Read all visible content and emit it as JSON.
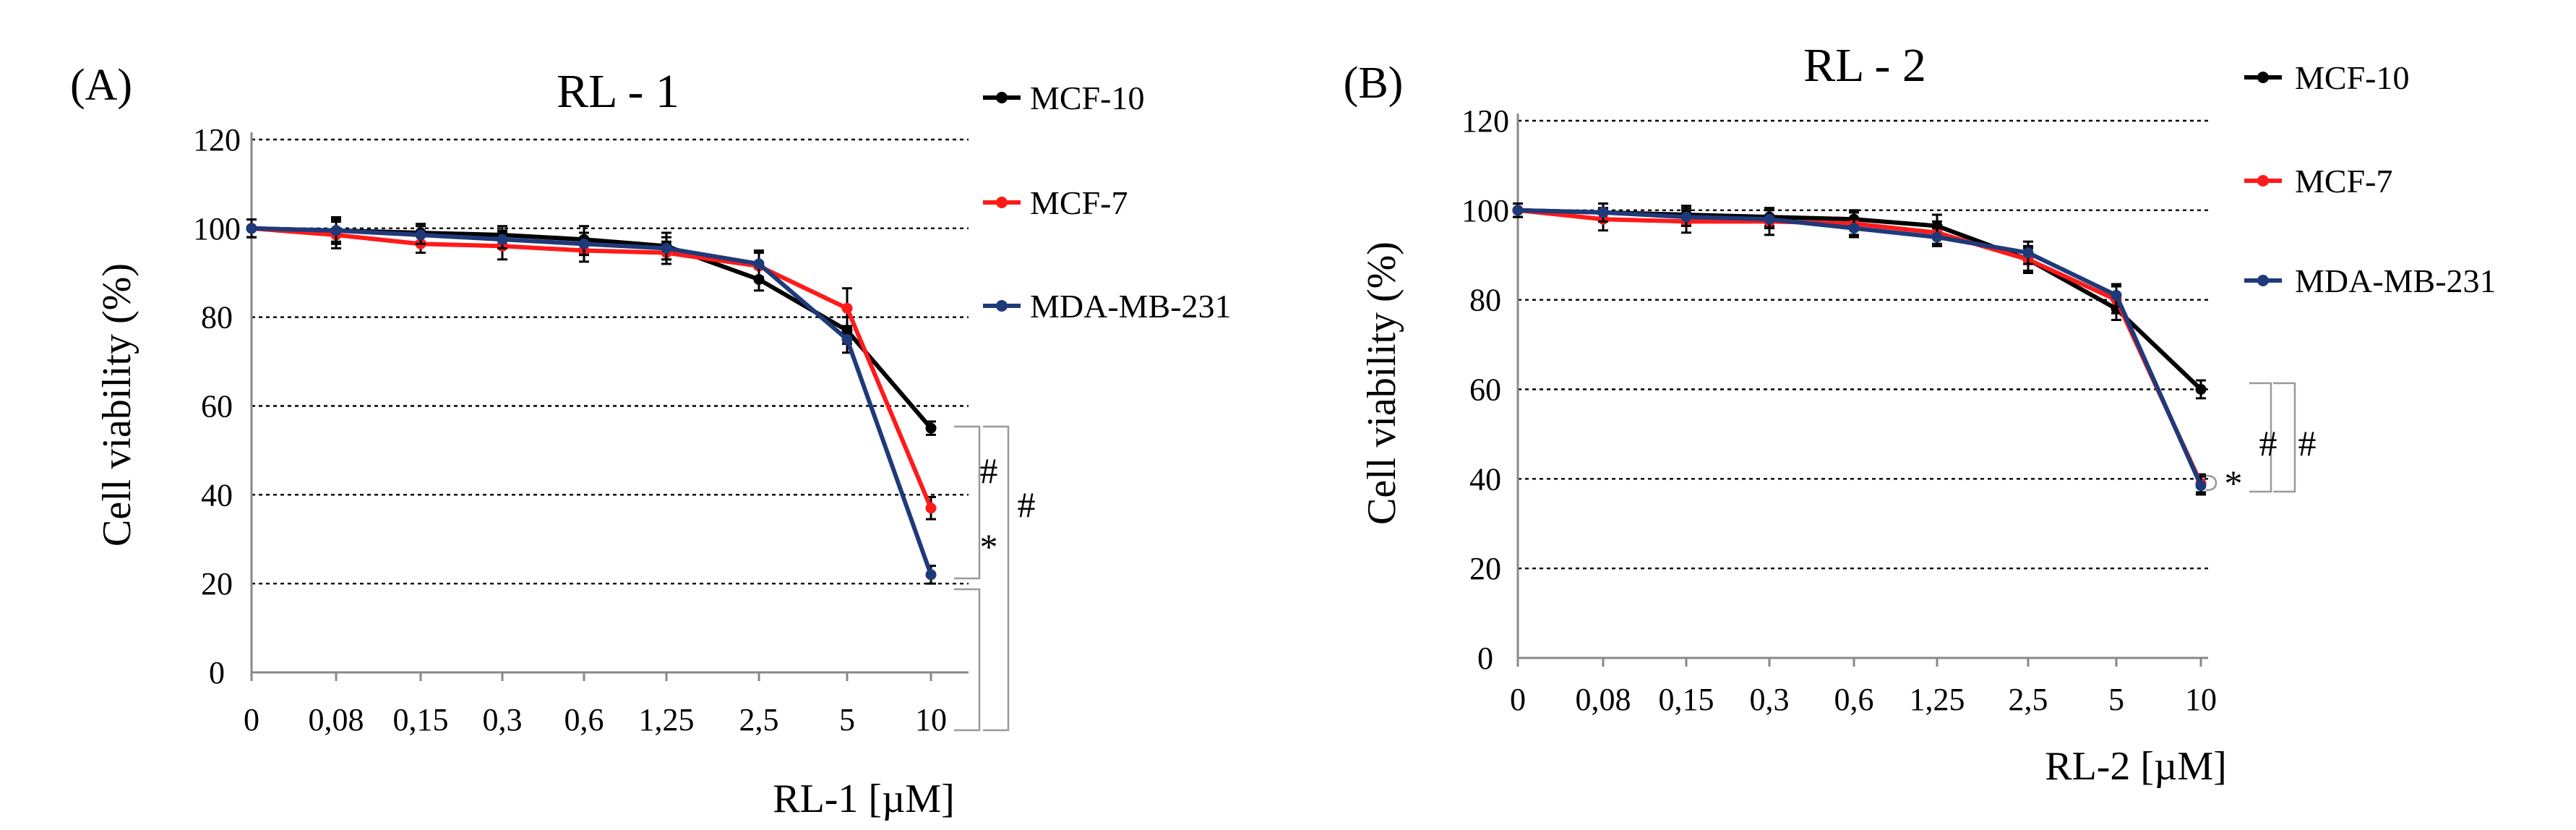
{
  "chart_data": [
    {
      "type": "line",
      "panel_label": "(A)",
      "title": "RL - 1",
      "xlabel": "RL-1 [µM]",
      "ylabel": "Cell viability (%)",
      "categories": [
        "0",
        "0,08",
        "0,15",
        "0,3",
        "0,6",
        "1,25",
        "2,5",
        "5",
        "10"
      ],
      "yticks": [
        "0",
        "20",
        "40",
        "60",
        "80",
        "100",
        "120"
      ],
      "ylim": [
        0,
        120
      ],
      "grid": true,
      "legend_position": "right",
      "series": [
        {
          "name": "MCF-10",
          "color": "#000000",
          "values": [
            100,
            99.5,
            99,
            98.5,
            97.5,
            96,
            88.5,
            77,
            55
          ],
          "errors": [
            2,
            3,
            2,
            2,
            3,
            3,
            2.5,
            3,
            1.5
          ]
        },
        {
          "name": "MCF-7",
          "color": "#ff1a1a",
          "values": [
            100,
            98.5,
            96.5,
            96,
            95,
            94.5,
            91.5,
            82,
            37
          ],
          "errors": [
            2,
            3,
            2,
            3,
            2.5,
            2.5,
            3,
            4.5,
            2.5
          ]
        },
        {
          "name": "MDA-MB-231",
          "color": "#1f3a7a",
          "values": [
            100,
            99.5,
            98.5,
            97.5,
            96.5,
            95.5,
            92,
            75,
            22
          ],
          "errors": [
            2,
            2.5,
            2,
            2,
            2.5,
            2.5,
            3,
            3,
            2
          ]
        }
      ],
      "significance": [
        {
          "label": "#",
          "between": [
            "MCF-10",
            "MCF-7"
          ]
        },
        {
          "label": "*",
          "between": [
            "MCF-7",
            "MDA-MB-231"
          ]
        },
        {
          "label": "#",
          "between": [
            "MCF-10",
            "MDA-MB-231"
          ]
        }
      ]
    },
    {
      "type": "line",
      "panel_label": "(B)",
      "title": "RL - 2",
      "xlabel": "RL-2 [µM]",
      "ylabel": "Cell viability (%)",
      "categories": [
        "0",
        "0,08",
        "0,15",
        "0,3",
        "0,6",
        "1,25",
        "2,5",
        "5",
        "10"
      ],
      "yticks": [
        "0",
        "20",
        "40",
        "60",
        "80",
        "100",
        "120"
      ],
      "ylim": [
        0,
        120
      ],
      "grid": true,
      "legend_position": "right",
      "series": [
        {
          "name": "MCF-10",
          "color": "#000000",
          "values": [
            100,
            99.5,
            99,
            98.5,
            98,
            96.5,
            89,
            78,
            60
          ],
          "errors": [
            1.5,
            2,
            2,
            2,
            2,
            2.5,
            2.5,
            2.5,
            2
          ]
        },
        {
          "name": "MCF-7",
          "color": "#ff1a1a",
          "values": [
            100,
            98,
            97.5,
            97.5,
            97,
            95,
            89,
            80,
            39
          ],
          "errors": [
            1.5,
            2.5,
            2.5,
            3,
            2.5,
            2.5,
            3,
            3,
            2
          ]
        },
        {
          "name": "MDA-MB-231",
          "color": "#1f3a7a",
          "values": [
            100,
            99.5,
            98.5,
            98,
            96,
            94,
            90.5,
            81,
            38.5
          ],
          "errors": [
            1.5,
            2,
            2,
            2,
            2,
            2,
            2.5,
            2.5,
            2
          ]
        }
      ],
      "significance": [
        {
          "label": "*",
          "between": [
            "MCF-7",
            "MDA-MB-231"
          ]
        },
        {
          "label": "#",
          "between": [
            "MCF-10",
            "MCF-7"
          ]
        },
        {
          "label": "#",
          "between": [
            "MCF-10",
            "MDA-MB-231"
          ]
        }
      ]
    }
  ]
}
